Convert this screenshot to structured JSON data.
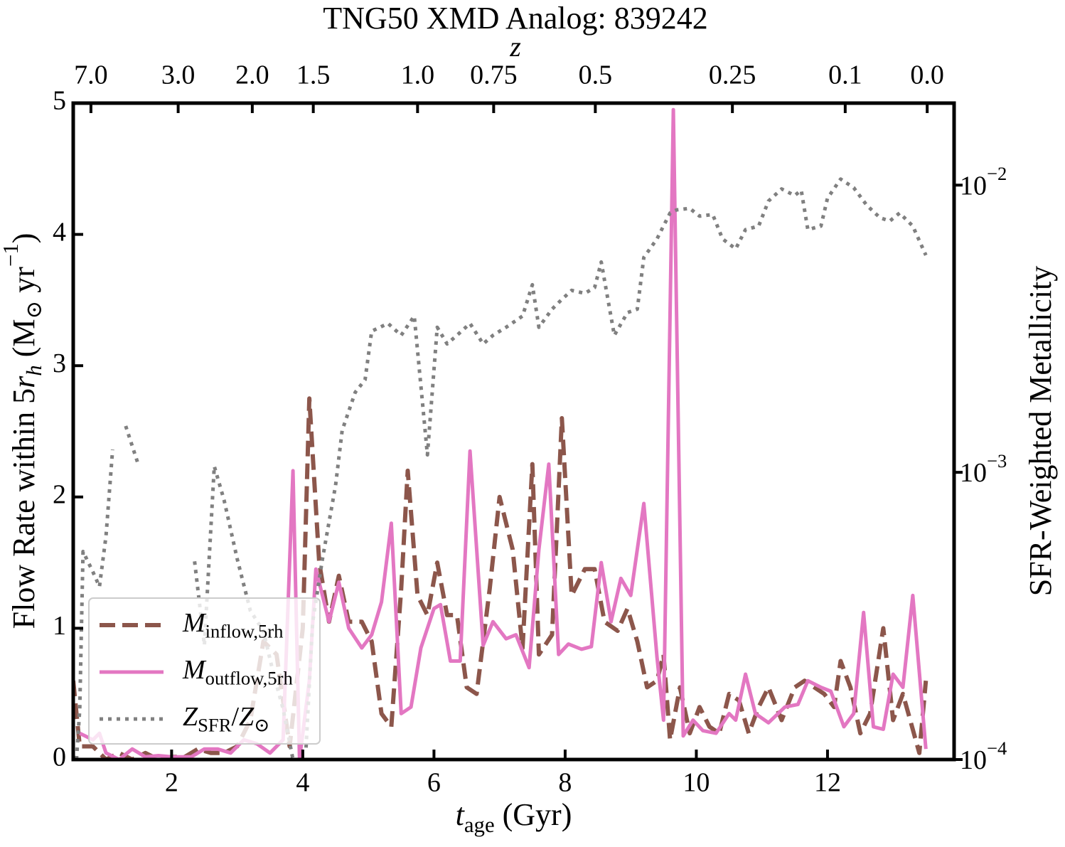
{
  "chart_data": {
    "type": "line",
    "title": "TNG50 XMD Analog: 839242",
    "xlabel": [
      {
        "text": "t",
        "italic": true
      },
      {
        "text": "age",
        "sub": true
      },
      {
        "text": " (Gyr)"
      }
    ],
    "ylabel": [
      {
        "text": "Flow Rate within 5"
      },
      {
        "text": "r",
        "italic": true
      },
      {
        "text": "h",
        "sub": true,
        "italic": true
      },
      {
        "text": " (M"
      },
      {
        "text": "⊙",
        "sub": true
      },
      {
        "text": " yr"
      },
      {
        "text": "−1",
        "sup": true
      },
      {
        "text": ")"
      }
    ],
    "y2label": "SFR-Weighted Metallicity",
    "x2label": "z",
    "xlim": [
      0.5,
      13.93
    ],
    "xticks": [
      2,
      4,
      6,
      8,
      10,
      12
    ],
    "x2ticks": [
      {
        "value": 0.77,
        "label": "7.0"
      },
      {
        "value": 2.1,
        "label": "3.0"
      },
      {
        "value": 3.23,
        "label": "2.0"
      },
      {
        "value": 4.16,
        "label": "1.5"
      },
      {
        "value": 5.75,
        "label": "1.0"
      },
      {
        "value": 6.91,
        "label": "0.75"
      },
      {
        "value": 8.46,
        "label": "0.5"
      },
      {
        "value": 10.55,
        "label": "0.25"
      },
      {
        "value": 12.27,
        "label": "0.1"
      },
      {
        "value": 13.52,
        "label": "0.0"
      }
    ],
    "ylim": [
      0,
      5
    ],
    "yticks": [
      0,
      1,
      2,
      3,
      4,
      5
    ],
    "y2lim": [
      0.0001,
      0.0193
    ],
    "y2log": true,
    "y2ticks": [
      {
        "value": 0.0001,
        "label": [
          {
            "text": "10"
          },
          {
            "text": "−4",
            "sup": true
          }
        ]
      },
      {
        "value": 0.001,
        "label": [
          {
            "text": "10"
          },
          {
            "text": "−3",
            "sup": true
          }
        ]
      },
      {
        "value": 0.01,
        "label": [
          {
            "text": "10"
          },
          {
            "text": "−2",
            "sup": true
          }
        ]
      }
    ],
    "legend": "lower left",
    "series": [
      {
        "name": [
          {
            "text": "M",
            "italic": true
          },
          {
            "text": "inflow,5rh",
            "sub": true
          }
        ],
        "color": "#8c564b",
        "style": "dashed",
        "x": [
          0.5,
          0.6,
          0.8,
          1.0,
          1.2,
          1.4,
          1.6,
          1.8,
          2.0,
          2.2,
          2.4,
          2.6,
          2.8,
          3.0,
          3.2,
          3.4,
          3.6,
          3.8,
          4.0,
          4.1,
          4.25,
          4.4,
          4.55,
          4.7,
          4.9,
          5.05,
          5.2,
          5.35,
          5.5,
          5.6,
          5.75,
          5.9,
          6.05,
          6.2,
          6.35,
          6.5,
          6.65,
          6.85,
          7.0,
          7.2,
          7.35,
          7.5,
          7.6,
          7.8,
          7.95,
          8.1,
          8.3,
          8.45,
          8.6,
          8.8,
          8.95,
          9.1,
          9.25,
          9.4,
          9.5,
          9.6,
          9.75,
          9.9,
          10.05,
          10.2,
          10.35,
          10.5,
          10.65,
          10.8,
          10.95,
          11.1,
          11.3,
          11.5,
          11.65,
          11.8,
          11.95,
          12.1,
          12.2,
          12.35,
          12.5,
          12.65,
          12.85,
          13.0,
          13.15,
          13.4,
          13.5
        ],
        "values": [
          0.6,
          0.1,
          0.1,
          0.0,
          0.05,
          0.0,
          0.05,
          0.0,
          0.02,
          0.02,
          0.08,
          0.05,
          0.05,
          0.1,
          0.3,
          0.9,
          0.8,
          0.1,
          1.0,
          2.75,
          1.5,
          1.05,
          1.4,
          1.05,
          1.05,
          0.9,
          0.35,
          0.25,
          1.3,
          2.2,
          1.25,
          1.1,
          1.5,
          1.1,
          1.1,
          0.55,
          0.5,
          1.3,
          2.0,
          1.6,
          0.85,
          2.25,
          0.8,
          0.95,
          2.6,
          1.25,
          1.45,
          1.45,
          1.05,
          0.98,
          1.15,
          0.9,
          0.55,
          0.6,
          0.8,
          0.15,
          0.55,
          0.2,
          0.4,
          0.25,
          0.2,
          0.5,
          0.45,
          0.2,
          0.4,
          0.55,
          0.3,
          0.55,
          0.6,
          0.55,
          0.5,
          0.4,
          0.75,
          0.55,
          0.2,
          0.35,
          1.0,
          0.3,
          0.5,
          0.05,
          0.6
        ]
      },
      {
        "name": [
          {
            "text": "M",
            "italic": true
          },
          {
            "text": "outflow,5rh",
            "sub": true
          }
        ],
        "color": "#e377c2",
        "style": "solid",
        "x": [
          0.6,
          0.8,
          0.9,
          1.0,
          1.2,
          1.4,
          1.6,
          1.8,
          2.0,
          2.3,
          2.5,
          2.7,
          2.9,
          3.1,
          3.3,
          3.5,
          3.7,
          3.85,
          3.95,
          4.1,
          4.2,
          4.4,
          4.55,
          4.7,
          4.9,
          5.05,
          5.2,
          5.35,
          5.5,
          5.65,
          5.8,
          6.0,
          6.1,
          6.25,
          6.4,
          6.55,
          6.75,
          6.9,
          7.1,
          7.25,
          7.45,
          7.6,
          7.75,
          7.9,
          8.05,
          8.25,
          8.4,
          8.55,
          8.7,
          8.85,
          9.0,
          9.2,
          9.4,
          9.5,
          9.65,
          9.8,
          9.95,
          10.1,
          10.3,
          10.5,
          10.6,
          10.75,
          10.9,
          11.1,
          11.35,
          11.55,
          11.7,
          11.9,
          12.05,
          12.25,
          12.4,
          12.55,
          12.7,
          12.85,
          13.0,
          13.15,
          13.3,
          13.5
        ],
        "values": [
          0.2,
          0.15,
          0.2,
          0.05,
          0.0,
          0.08,
          0.02,
          0.03,
          0.02,
          0.02,
          0.08,
          0.08,
          0.05,
          0.15,
          0.12,
          0.05,
          0.15,
          2.2,
          0.0,
          0.6,
          1.45,
          1.05,
          1.35,
          1.0,
          0.85,
          0.95,
          1.2,
          1.8,
          0.35,
          0.4,
          0.85,
          1.15,
          1.18,
          0.75,
          0.75,
          2.35,
          0.87,
          1.05,
          0.92,
          0.95,
          0.7,
          1.6,
          2.25,
          0.8,
          0.88,
          0.84,
          0.86,
          1.5,
          1.05,
          1.38,
          1.25,
          1.95,
          0.78,
          0.3,
          4.95,
          0.18,
          0.3,
          0.22,
          0.2,
          0.35,
          0.3,
          0.65,
          0.35,
          0.28,
          0.4,
          0.42,
          0.6,
          0.55,
          0.52,
          0.25,
          0.35,
          1.12,
          0.25,
          0.23,
          0.65,
          0.55,
          1.25,
          0.08
        ]
      },
      {
        "name": [
          {
            "text": "Z",
            "italic": true
          },
          {
            "text": "SFR",
            "sub": true
          },
          {
            "text": "/"
          },
          {
            "text": "Z",
            "italic": true
          },
          {
            "text": "⊙",
            "sub": true
          }
        ],
        "color": "#808080",
        "style": "dotted",
        "axis": "y2",
        "x": [
          0.55,
          0.6,
          0.65,
          0.8,
          0.9,
          1.0,
          1.1,
          1.2,
          1.3,
          1.5,
          2.0,
          2.35,
          2.5,
          2.65,
          2.8,
          3.0,
          3.2,
          3.4,
          3.55,
          3.7,
          3.85,
          3.95,
          4.05,
          4.15,
          4.3,
          4.5,
          4.6,
          4.8,
          4.95,
          5.05,
          5.3,
          5.5,
          5.7,
          5.9,
          6.05,
          6.2,
          6.35,
          6.55,
          6.75,
          6.9,
          7.1,
          7.35,
          7.5,
          7.6,
          7.8,
          7.95,
          8.1,
          8.3,
          8.45,
          8.55,
          8.75,
          8.95,
          9.1,
          9.2,
          9.4,
          9.6,
          9.7,
          9.9,
          10.05,
          10.25,
          10.4,
          10.6,
          10.75,
          10.95,
          11.1,
          11.3,
          11.5,
          11.6,
          11.7,
          11.9,
          12.0,
          12.2,
          12.4,
          12.6,
          12.8,
          12.95,
          13.1,
          13.3,
          13.5
        ],
        "values": [
          0.0001,
          0.00015,
          0.00053,
          0.00045,
          0.0004,
          0.0006,
          0.0012,
          null,
          0.00145,
          0.00105,
          null,
          0.00049,
          0.00025,
          0.00105,
          0.0008,
          0.0005,
          0.00033,
          0.00028,
          0.0002,
          0.00015,
          0.0001,
          null,
          0.00011,
          0.0003,
          0.0005,
          0.0009,
          0.0014,
          0.0019,
          0.0021,
          0.0031,
          0.0033,
          0.003,
          0.0035,
          0.00115,
          0.0032,
          0.0028,
          0.003,
          0.0033,
          0.0028,
          0.003,
          0.0032,
          0.0035,
          0.0045,
          0.0032,
          0.0037,
          0.004,
          0.0043,
          0.0042,
          0.0044,
          0.0054,
          0.003,
          0.0036,
          0.0037,
          0.0056,
          0.0065,
          0.008,
          0.0082,
          0.0083,
          0.0078,
          0.0079,
          0.0065,
          0.006,
          0.007,
          0.0072,
          0.0088,
          0.0097,
          0.0092,
          0.0096,
          0.007,
          0.0072,
          0.009,
          0.0105,
          0.0098,
          0.0085,
          0.0077,
          0.0075,
          0.008,
          0.0072,
          0.0057
        ]
      }
    ]
  }
}
